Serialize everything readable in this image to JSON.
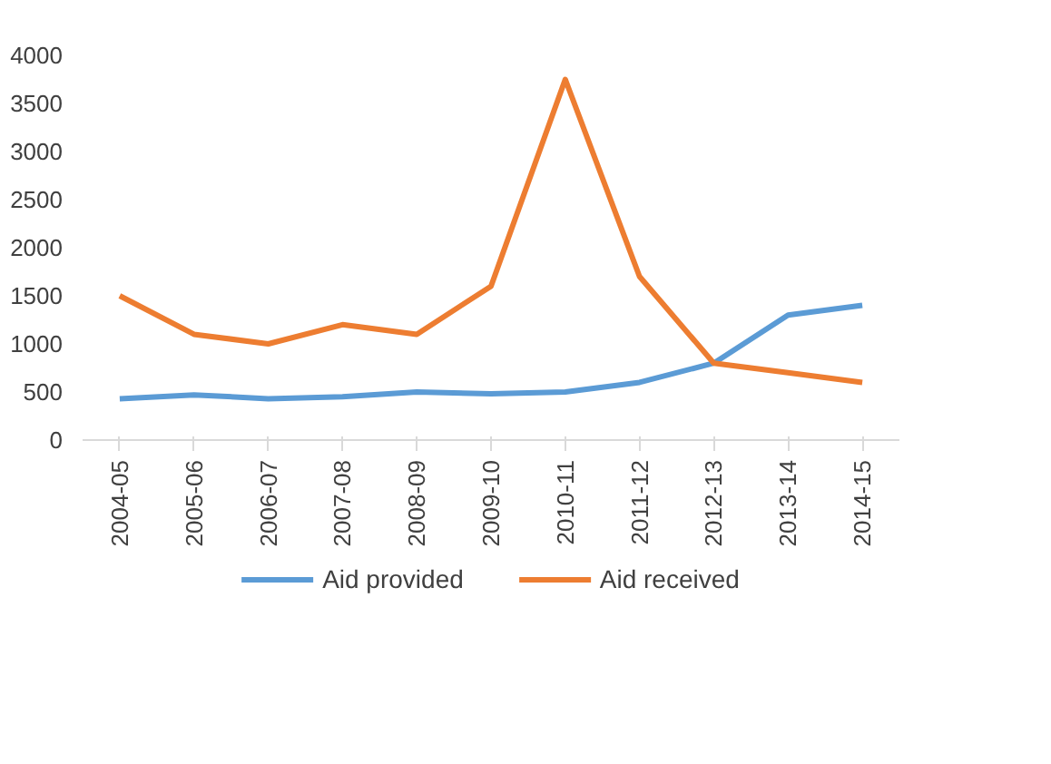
{
  "chart_data": {
    "type": "line",
    "categories": [
      "2004-05",
      "2005-06",
      "2006-07",
      "2007-08",
      "2008-09",
      "2009-10",
      "2010-11",
      "2011-12",
      "2012-13",
      "2013-14",
      "2014-15"
    ],
    "series": [
      {
        "name": "Aid provided",
        "color": "#5b9bd5",
        "values": [
          430,
          470,
          430,
          450,
          500,
          480,
          500,
          600,
          800,
          1300,
          1400
        ]
      },
      {
        "name": "Aid received",
        "color": "#ed7d31",
        "values": [
          1500,
          1100,
          1000,
          1200,
          1100,
          1600,
          3750,
          1700,
          800,
          700,
          600
        ]
      }
    ],
    "ylim": [
      0,
      4000
    ],
    "yticks": [
      0,
      500,
      1000,
      1500,
      2000,
      2500,
      3000,
      3500,
      4000
    ],
    "grid": false,
    "legend": "bottom",
    "marker": "none",
    "line_style": "solid"
  }
}
